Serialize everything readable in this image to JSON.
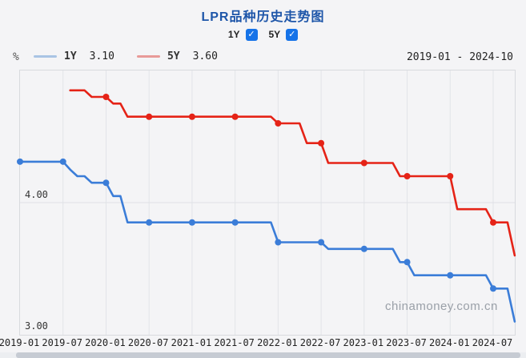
{
  "header": {
    "title": "LPR品种历史走势图"
  },
  "controls": {
    "items": [
      {
        "label": "1Y",
        "checked": true
      },
      {
        "label": "5Y",
        "checked": true
      }
    ]
  },
  "legend": {
    "unit": "%",
    "items": [
      {
        "label": "1Y",
        "value": "3.10",
        "swatch_color": "#a9c4e4"
      },
      {
        "label": "5Y",
        "value": "3.60",
        "swatch_color": "#e89a98"
      }
    ],
    "range": "2019-01 - 2024-10"
  },
  "watermark": "chinamoney.com.cn",
  "chart_data": {
    "type": "line",
    "title": "LPR品种历史走势图",
    "ylabel": "%",
    "ylim": [
      3.0,
      5.0
    ],
    "y_ticks": [
      "4.00",
      "3.00"
    ],
    "y_tick_values": [
      4.0,
      3.0
    ],
    "x_ticks": [
      "2019-01",
      "2019-07",
      "2020-01",
      "2020-07",
      "2021-01",
      "2021-07",
      "2022-01",
      "2022-07",
      "2023-01",
      "2023-07",
      "2024-01",
      "2024-07"
    ],
    "x_range": [
      "2019-01",
      "2024-10"
    ],
    "grid": true,
    "legend_position": "top-left",
    "series": [
      {
        "name": "1Y",
        "color": "#3b7dd8",
        "latest": 3.1,
        "points": [
          [
            "2019-01",
            4.31
          ],
          [
            "2019-08",
            4.25
          ],
          [
            "2019-09",
            4.2
          ],
          [
            "2019-11",
            4.15
          ],
          [
            "2020-02",
            4.05
          ],
          [
            "2020-04",
            3.85
          ],
          [
            "2022-01",
            3.7
          ],
          [
            "2022-08",
            3.65
          ],
          [
            "2023-06",
            3.55
          ],
          [
            "2023-08",
            3.45
          ],
          [
            "2024-07",
            3.35
          ],
          [
            "2024-10",
            3.1
          ]
        ]
      },
      {
        "name": "5Y",
        "color": "#e52317",
        "latest": 3.6,
        "points": [
          [
            "2019-08",
            4.85
          ],
          [
            "2019-11",
            4.8
          ],
          [
            "2020-02",
            4.75
          ],
          [
            "2020-04",
            4.65
          ],
          [
            "2022-01",
            4.6
          ],
          [
            "2022-05",
            4.45
          ],
          [
            "2022-08",
            4.3
          ],
          [
            "2023-06",
            4.2
          ],
          [
            "2024-02",
            3.95
          ],
          [
            "2024-07",
            3.85
          ],
          [
            "2024-10",
            3.6
          ]
        ]
      }
    ]
  }
}
